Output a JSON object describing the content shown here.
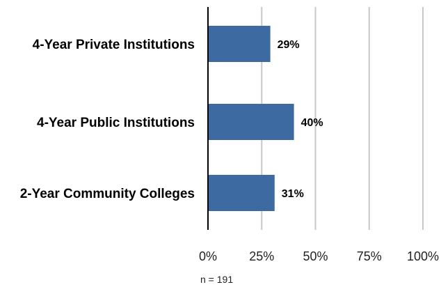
{
  "chart_data": {
    "type": "bar",
    "orientation": "horizontal",
    "categories": [
      "4-Year Private Institutions",
      "4-Year Public Institutions",
      "2-Year Community Colleges"
    ],
    "values": [
      29,
      40,
      31
    ],
    "value_labels": [
      "29%",
      "40%",
      "31%"
    ],
    "title": "",
    "xlabel": "",
    "ylabel": "",
    "xlim": [
      0,
      100
    ],
    "x_ticks": [
      0,
      25,
      50,
      75,
      100
    ],
    "x_tick_labels": [
      "0%",
      "25%",
      "50%",
      "75%",
      "100%"
    ],
    "grid": true,
    "legend": "none",
    "bar_color": "#3d6aa0",
    "grid_color": "#c8c8c8",
    "axis_color": "#000000",
    "note": "n = 191"
  }
}
